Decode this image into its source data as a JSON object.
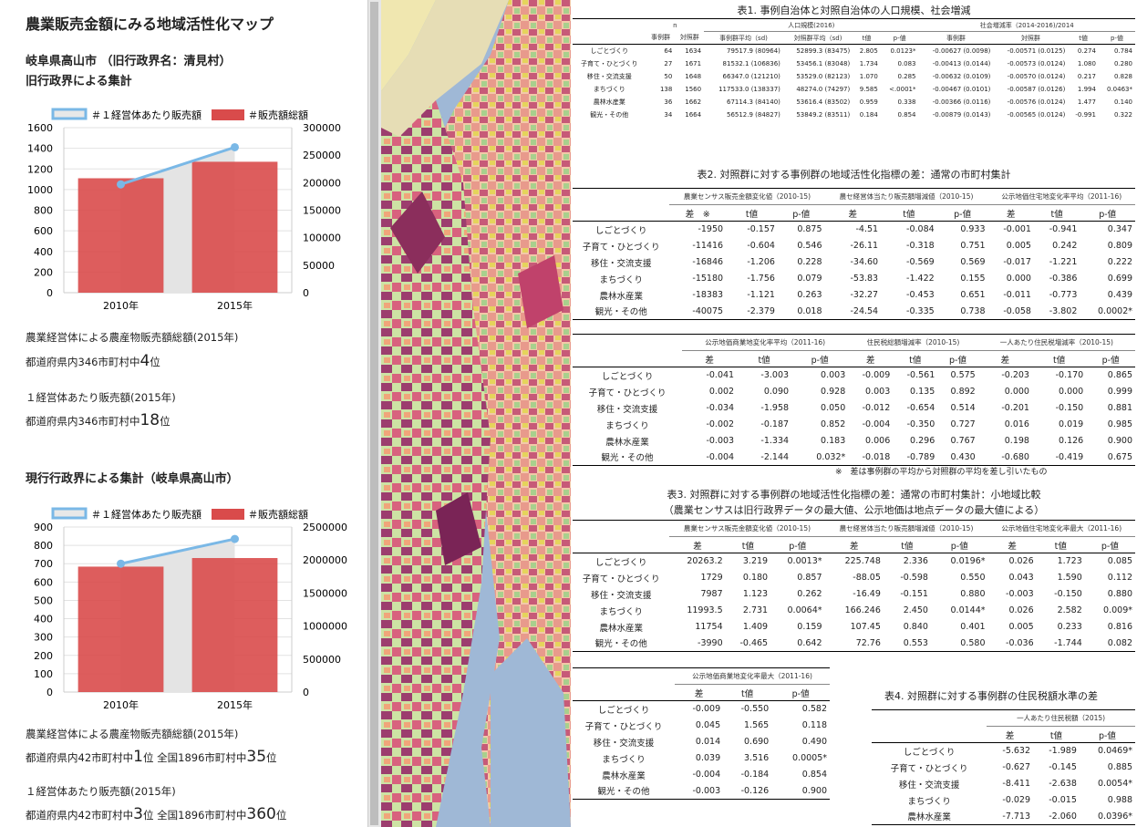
{
  "page_title": "農業販売金額にみる地域活性化マップ",
  "section1": {
    "place": "岐阜県高山市 （旧行政界名：清見村）",
    "sub": "旧行政界による集計"
  },
  "section2": {
    "title": "現行行政界による集計（岐阜県高山市）"
  },
  "charts": [
    {
      "id": "old",
      "type": "bar",
      "categories": [
        "2010年",
        "2015年"
      ],
      "series": [
        {
          "name": "＃１経営体あたり販売額",
          "axis": "left",
          "type": "line",
          "values": [
            1050,
            1410
          ],
          "color": "#7ab8e6"
        },
        {
          "name": "＃販売額総額",
          "axis": "right",
          "type": "bar",
          "values": [
            208000,
            238000
          ],
          "color": "#d94b4b"
        }
      ],
      "y_left": {
        "min": 0,
        "max": 1600,
        "ticks": [
          "0",
          "200",
          "400",
          "600",
          "800",
          "1000",
          "1200",
          "1400",
          "1600"
        ]
      },
      "y_right": {
        "min": 0,
        "max": 300000,
        "ticks": [
          "0",
          "50000",
          "100000",
          "150000",
          "200000",
          "250000",
          "300000"
        ]
      }
    },
    {
      "id": "new",
      "type": "bar",
      "categories": [
        "2010年",
        "2015年"
      ],
      "series": [
        {
          "name": "＃１経営体あたり販売額",
          "axis": "left",
          "type": "line",
          "values": [
            700,
            835
          ],
          "color": "#7ab8e6"
        },
        {
          "name": "＃販売額総額",
          "axis": "right",
          "type": "bar",
          "values": [
            1900000,
            2030000
          ],
          "color": "#d94b4b"
        }
      ],
      "y_left": {
        "min": 0,
        "max": 900,
        "ticks": [
          "0",
          "100",
          "200",
          "300",
          "400",
          "500",
          "600",
          "700",
          "800",
          "900"
        ]
      },
      "y_right": {
        "min": 0,
        "max": 2500000,
        "ticks": [
          "0",
          "500000",
          "1000000",
          "1500000",
          "2000000",
          "2500000"
        ]
      }
    }
  ],
  "chart_data": [
    {
      "type": "bar",
      "categories": [
        "2010年",
        "2015年"
      ],
      "series": [
        {
          "name": "＃１経営体あたり販売額",
          "values": [
            1050,
            1410
          ]
        },
        {
          "name": "＃販売額総額",
          "values": [
            208000,
            238000
          ]
        }
      ],
      "ylim_left": [
        0,
        1600
      ],
      "ylim_right": [
        0,
        300000
      ]
    },
    {
      "type": "bar",
      "categories": [
        "2010年",
        "2015年"
      ],
      "series": [
        {
          "name": "＃１経営体あたり販売額",
          "values": [
            700,
            835
          ]
        },
        {
          "name": "＃販売額総額",
          "values": [
            1900000,
            2030000
          ]
        }
      ],
      "ylim_left": [
        0,
        900
      ],
      "ylim_right": [
        0,
        2500000
      ]
    }
  ],
  "rank1": {
    "label_total": "農業経営体による農産物販売額総額(2015年)",
    "total_prefix": "都道府県内346市町村中",
    "total_rank": "4",
    "unit": "位",
    "label_per": "１経営体あたり販売額(2015年)",
    "per_prefix": "都道府県内346市町村中",
    "per_rank": "18"
  },
  "rank2": {
    "label_total": "農業経営体による農産物販売額総額(2015年)",
    "total_prefix": "都道府県内42市町村中",
    "total_rank": "1",
    "total_mid": "位 全国1896市町村中",
    "total_rank2": "35",
    "label_per": "１経営体あたり販売額(2015年)",
    "per_prefix": "都道府県内42市町村中",
    "per_rank": "3",
    "per_mid": "位 全国1896市町村中",
    "per_rank2": "360",
    "unit": "位"
  },
  "table1": {
    "title": "表1. 事例自治体と対照自治体の人口規模、社会増減",
    "h_n": "n",
    "h_pop": "人口規模(2016)",
    "h_soc": "社会増減率（2014-2016)/2014",
    "cols": [
      "事例群",
      "対照群",
      "事例群平均（sd)",
      "対照群平均（sd)",
      "t値",
      "p-値",
      "事例群",
      "対照群",
      "t値",
      "p-値"
    ],
    "rows": [
      [
        "しごとづくり",
        "64",
        "1634",
        "79517.9 (80964)",
        "52899.3 (83475)",
        "2.805",
        "0.0123*",
        "-0.00627 (0.0098)",
        "-0.00571 (0.0125)",
        "0.274",
        "0.784"
      ],
      [
        "子育て・ひとづくり",
        "27",
        "1671",
        "81532.1 (106836)",
        "53456.1 (83048)",
        "1.734",
        "0.083",
        "-0.00413 (0.0144)",
        "-0.00573 (0.0124)",
        "1.080",
        "0.280"
      ],
      [
        "移住・交流支援",
        "50",
        "1648",
        "66347.0 (121210)",
        "53529.0 (82123)",
        "1.070",
        "0.285",
        "-0.00632 (0.0109)",
        "-0.00570 (0.0124)",
        "0.217",
        "0.828"
      ],
      [
        "まちづくり",
        "138",
        "1560",
        "117533.0 (138337)",
        "48274.0 (74297)",
        "9.585",
        "<.0001*",
        "-0.00467 (0.0101)",
        "-0.00587 (0.0126)",
        "1.994",
        "0.0463*"
      ],
      [
        "農林水産業",
        "36",
        "1662",
        "67114.3 (84140)",
        "53616.4 (83502)",
        "0.959",
        "0.338",
        "-0.00366 (0.0116)",
        "-0.00576 (0.0124)",
        "1.477",
        "0.140"
      ],
      [
        "観光・その他",
        "34",
        "1664",
        "56512.9 (84827)",
        "53849.2 (83511)",
        "0.184",
        "0.854",
        "-0.00879 (0.0143)",
        "-0.00565 (0.0124)",
        "-0.991",
        "0.322"
      ]
    ]
  },
  "table2": {
    "title": "表2. 対照群に対する事例群の地域活性化指標の差：通常の市町村集計",
    "g1": "農業センサス販売金額変化値（2010-15)",
    "g2": "農セ経営体当たり販売額増減値（2010-15)",
    "g3": "公示地価住宅地変化率平均（2011-16)",
    "cols": [
      "差　※",
      "t値",
      "p-値",
      "差",
      "t値",
      "p-値",
      "差",
      "t値",
      "p-値"
    ],
    "rows": [
      [
        "しごとづくり",
        "-1950",
        "-0.157",
        "0.875",
        "-4.51",
        "-0.084",
        "0.933",
        "-0.001",
        "-0.941",
        "0.347"
      ],
      [
        "子育て・ひとづくり",
        "-11416",
        "-0.604",
        "0.546",
        "-26.11",
        "-0.318",
        "0.751",
        "0.005",
        "0.242",
        "0.809"
      ],
      [
        "移住・交流支援",
        "-16846",
        "-1.206",
        "0.228",
        "-34.60",
        "-0.569",
        "0.569",
        "-0.017",
        "-1.221",
        "0.222"
      ],
      [
        "まちづくり",
        "-15180",
        "-1.756",
        "0.079",
        "-53.83",
        "-1.422",
        "0.155",
        "0.000",
        "-0.386",
        "0.699"
      ],
      [
        "農林水産業",
        "-18383",
        "-1.121",
        "0.263",
        "-32.27",
        "-0.453",
        "0.651",
        "-0.011",
        "-0.773",
        "0.439"
      ],
      [
        "観光・その他",
        "-40075",
        "-2.379",
        "0.018",
        "-24.54",
        "-0.335",
        "0.738",
        "-0.058",
        "-3.802",
        "0.0002*"
      ]
    ]
  },
  "table2b": {
    "g1": "公示地価商業地変化率平均（2011-16)",
    "g2": "住民税総額増減率（2010-15)",
    "g3": "一人あたり住民税増減率（2010-15)",
    "cols": [
      "差",
      "t値",
      "p-値",
      "差",
      "t値",
      "p-値",
      "差",
      "t値",
      "p-値"
    ],
    "rows": [
      [
        "しごとづくり",
        "-0.041",
        "-3.003",
        "0.003",
        "-0.009",
        "-0.561",
        "0.575",
        "-0.203",
        "-0.170",
        "0.865"
      ],
      [
        "子育て・ひとづくり",
        "0.002",
        "0.090",
        "0.928",
        "0.003",
        "0.135",
        "0.892",
        "0.000",
        "0.000",
        "0.999"
      ],
      [
        "移住・交流支援",
        "-0.034",
        "-1.958",
        "0.050",
        "-0.012",
        "-0.654",
        "0.514",
        "-0.201",
        "-0.150",
        "0.881"
      ],
      [
        "まちづくり",
        "-0.002",
        "-0.187",
        "0.852",
        "-0.004",
        "-0.350",
        "0.727",
        "0.016",
        "0.019",
        "0.985"
      ],
      [
        "農林水産業",
        "-0.003",
        "-1.334",
        "0.183",
        "0.006",
        "0.296",
        "0.767",
        "0.198",
        "0.126",
        "0.900"
      ],
      [
        "観光・その他",
        "-0.004",
        "-2.144",
        "0.032*",
        "-0.018",
        "-0.789",
        "0.430",
        "-0.680",
        "-0.419",
        "0.675"
      ]
    ],
    "note": "※　差は事例群の平均から対照群の平均を差し引いたもの"
  },
  "table3": {
    "title1": "表3. 対照群に対する事例群の地域活性化指標の差：通常の市町村集計：小地域比較",
    "title2": "（農業センサスは旧行政界データの最大値、公示地価は地点データの最大値による）",
    "g1": "農業センサス販売金額変化値（2010-15)",
    "g2": "農セ経営体当たり販売額増減値（2010-15)",
    "g3": "公示地価住宅地変化率最大（2011-16)",
    "cols": [
      "差",
      "t値",
      "p-値",
      "差",
      "t値",
      "p-値",
      "差",
      "t値",
      "p-値"
    ],
    "rows": [
      [
        "しごとづくり",
        "20263.2",
        "3.219",
        "0.0013*",
        "225.748",
        "2.336",
        "0.0196*",
        "0.026",
        "1.723",
        "0.085"
      ],
      [
        "子育て・ひとづくり",
        "1729",
        "0.180",
        "0.857",
        "-88.05",
        "-0.598",
        "0.550",
        "0.043",
        "1.590",
        "0.112"
      ],
      [
        "移住・交流支援",
        "7987",
        "1.123",
        "0.262",
        "-16.49",
        "-0.151",
        "0.880",
        "-0.003",
        "-0.150",
        "0.880"
      ],
      [
        "まちづくり",
        "11993.5",
        "2.731",
        "0.0064*",
        "166.246",
        "2.450",
        "0.0144*",
        "0.026",
        "2.582",
        "0.009*"
      ],
      [
        "農林水産業",
        "11754",
        "1.409",
        "0.159",
        "107.45",
        "0.840",
        "0.401",
        "0.005",
        "0.233",
        "0.816"
      ],
      [
        "観光・その他",
        "-3990",
        "-0.465",
        "0.642",
        "72.76",
        "0.553",
        "0.580",
        "-0.036",
        "-1.744",
        "0.082"
      ]
    ]
  },
  "table3b": {
    "g1": "公示地価商業地変化率最大（2011-16)",
    "cols": [
      "差",
      "t値",
      "p-値"
    ],
    "rows": [
      [
        "しごとづくり",
        "-0.009",
        "-0.550",
        "0.582"
      ],
      [
        "子育て・ひとづくり",
        "0.045",
        "1.565",
        "0.118"
      ],
      [
        "移住・交流支援",
        "0.014",
        "0.690",
        "0.490"
      ],
      [
        "まちづくり",
        "0.039",
        "3.516",
        "0.0005*"
      ],
      [
        "農林水産業",
        "-0.004",
        "-0.184",
        "0.854"
      ],
      [
        "観光・その他",
        "-0.003",
        "-0.126",
        "0.900"
      ]
    ]
  },
  "table4": {
    "title": "表4. 対照群に対する事例群の住民税額水準の差",
    "g1": "一人あたり住民税額（2015)",
    "cols": [
      "差",
      "t値",
      "p-値"
    ],
    "rows": [
      [
        "しごとづくり",
        "-5.632",
        "-1.989",
        "0.0469*"
      ],
      [
        "子育て・ひとづくり",
        "-0.627",
        "-0.145",
        "0.885"
      ],
      [
        "移住・交流支援",
        "-8.411",
        "-2.638",
        "0.0054*"
      ],
      [
        "まちづくり",
        "-0.029",
        "-0.015",
        "0.988"
      ],
      [
        "農林水産業",
        "-7.713",
        "-2.060",
        "0.0396*"
      ]
    ]
  }
}
